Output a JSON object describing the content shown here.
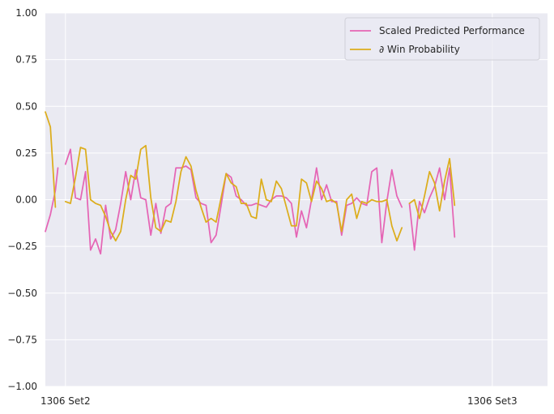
{
  "chart_data": {
    "type": "line",
    "grid": true,
    "legend_placement": "top-right",
    "ylim": [
      -1.0,
      1.0
    ],
    "yticks": [
      -1.0,
      -0.75,
      -0.5,
      -0.25,
      0.0,
      0.25,
      0.5,
      0.75,
      1.0
    ],
    "ytick_labels": [
      "−1.00",
      "−0.75",
      "−0.50",
      "−0.25",
      "0.00",
      "0.25",
      "0.50",
      "0.75",
      "1.00"
    ],
    "xlim": [
      0,
      100
    ],
    "xticks": [
      {
        "x": 4,
        "label": "1306 Set2"
      },
      {
        "x": 89,
        "label": "1306 Set3"
      }
    ],
    "series": [
      {
        "name": "Scaled Predicted Performance",
        "color": "#e565b5",
        "segments": [
          [
            [
              0,
              -0.17
            ],
            [
              1,
              -0.08
            ],
            [
              2,
              0.05
            ],
            [
              2.5,
              0.17
            ]
          ],
          [
            [
              4,
              0.19
            ],
            [
              5,
              0.27
            ],
            [
              6,
              0.01
            ],
            [
              7,
              0.0
            ],
            [
              8,
              0.15
            ],
            [
              9,
              -0.27
            ],
            [
              10,
              -0.21
            ],
            [
              11,
              -0.29
            ],
            [
              12,
              -0.03
            ],
            [
              13,
              -0.21
            ],
            [
              14,
              -0.16
            ],
            [
              15,
              -0.02
            ],
            [
              16,
              0.15
            ],
            [
              17,
              0.0
            ],
            [
              18,
              0.16
            ],
            [
              19,
              0.01
            ],
            [
              20,
              0.0
            ],
            [
              21,
              -0.19
            ],
            [
              22,
              -0.02
            ],
            [
              23,
              -0.18
            ],
            [
              24,
              -0.04
            ],
            [
              25,
              -0.02
            ],
            [
              26,
              0.17
            ],
            [
              27,
              0.17
            ],
            [
              28,
              0.18
            ],
            [
              29,
              0.16
            ],
            [
              30,
              0.01
            ],
            [
              31,
              -0.02
            ],
            [
              32,
              -0.03
            ],
            [
              33,
              -0.23
            ],
            [
              34,
              -0.19
            ],
            [
              35,
              -0.03
            ],
            [
              36,
              0.14
            ],
            [
              37,
              0.12
            ],
            [
              38,
              0.02
            ],
            [
              39,
              0.0
            ],
            [
              40,
              -0.03
            ],
            [
              41,
              -0.03
            ],
            [
              42,
              -0.02
            ],
            [
              43,
              -0.03
            ],
            [
              44,
              -0.04
            ],
            [
              45,
              0.0
            ],
            [
              46,
              0.02
            ],
            [
              47,
              0.02
            ],
            [
              48,
              0.01
            ],
            [
              49,
              -0.02
            ],
            [
              50,
              -0.2
            ],
            [
              51,
              -0.06
            ],
            [
              52,
              -0.15
            ],
            [
              53,
              0.0
            ],
            [
              54,
              0.17
            ],
            [
              55,
              0.0
            ],
            [
              56,
              0.08
            ],
            [
              57,
              -0.01
            ],
            [
              58,
              -0.01
            ],
            [
              59,
              -0.19
            ],
            [
              60,
              -0.03
            ],
            [
              61,
              -0.02
            ],
            [
              62,
              0.01
            ],
            [
              63,
              -0.02
            ],
            [
              64,
              -0.03
            ],
            [
              65,
              0.15
            ],
            [
              66,
              0.17
            ],
            [
              67,
              -0.23
            ],
            [
              68,
              -0.01
            ],
            [
              69,
              0.16
            ],
            [
              70,
              0.02
            ],
            [
              71,
              -0.04
            ]
          ],
          [
            [
              72.5,
              -0.02
            ],
            [
              73.5,
              -0.27
            ],
            [
              74.5,
              -0.01
            ],
            [
              75.5,
              -0.07
            ],
            [
              76.5,
              0.01
            ],
            [
              77.5,
              0.07
            ],
            [
              78.5,
              0.17
            ],
            [
              79.5,
              0.0
            ],
            [
              80.5,
              0.17
            ],
            [
              81.5,
              -0.2
            ]
          ]
        ]
      },
      {
        "name": "∂ Win Probability",
        "color": "#dcad1c",
        "segments": [
          [
            [
              0,
              0.47
            ],
            [
              1,
              0.39
            ],
            [
              2,
              -0.04
            ]
          ],
          [
            [
              4,
              -0.01
            ],
            [
              5,
              -0.02
            ],
            [
              6,
              0.12
            ],
            [
              7,
              0.28
            ],
            [
              8,
              0.27
            ],
            [
              9,
              0.0
            ],
            [
              10,
              -0.02
            ],
            [
              11,
              -0.03
            ],
            [
              12,
              -0.09
            ],
            [
              13,
              -0.17
            ],
            [
              14,
              -0.22
            ],
            [
              15,
              -0.17
            ],
            [
              16,
              0.0
            ],
            [
              17,
              0.13
            ],
            [
              18,
              0.11
            ],
            [
              19,
              0.27
            ],
            [
              20,
              0.29
            ],
            [
              21,
              0.01
            ],
            [
              22,
              -0.15
            ],
            [
              23,
              -0.17
            ],
            [
              24,
              -0.11
            ],
            [
              25,
              -0.12
            ],
            [
              26,
              -0.01
            ],
            [
              27,
              0.15
            ],
            [
              28,
              0.23
            ],
            [
              29,
              0.18
            ],
            [
              30,
              0.05
            ],
            [
              31,
              -0.04
            ],
            [
              32,
              -0.12
            ],
            [
              33,
              -0.1
            ],
            [
              34,
              -0.12
            ],
            [
              35,
              0.01
            ],
            [
              36,
              0.14
            ],
            [
              37,
              0.09
            ],
            [
              38,
              0.07
            ],
            [
              39,
              -0.02
            ],
            [
              40,
              -0.02
            ],
            [
              41,
              -0.09
            ],
            [
              42,
              -0.1
            ],
            [
              43,
              0.11
            ],
            [
              44,
              0.0
            ],
            [
              45,
              -0.01
            ],
            [
              46,
              0.1
            ],
            [
              47,
              0.06
            ],
            [
              48,
              -0.04
            ],
            [
              49,
              -0.14
            ],
            [
              50,
              -0.14
            ],
            [
              51,
              0.11
            ],
            [
              52,
              0.09
            ],
            [
              53,
              -0.01
            ],
            [
              54,
              0.1
            ],
            [
              55,
              0.06
            ],
            [
              56,
              -0.01
            ],
            [
              57,
              0.0
            ],
            [
              58,
              -0.02
            ],
            [
              59,
              -0.17
            ],
            [
              60,
              0.0
            ],
            [
              61,
              0.03
            ],
            [
              62,
              -0.1
            ],
            [
              63,
              -0.01
            ],
            [
              64,
              -0.02
            ],
            [
              65,
              0.0
            ],
            [
              66,
              -0.01
            ],
            [
              67,
              -0.01
            ],
            [
              68,
              0.0
            ],
            [
              69,
              -0.14
            ],
            [
              70,
              -0.22
            ],
            [
              71,
              -0.15
            ]
          ],
          [
            [
              72.5,
              -0.02
            ],
            [
              73.5,
              0.0
            ],
            [
              74.5,
              -0.1
            ],
            [
              75.5,
              0.02
            ],
            [
              76.5,
              0.15
            ],
            [
              77.5,
              0.09
            ],
            [
              78.5,
              -0.06
            ],
            [
              79.5,
              0.1
            ],
            [
              80.5,
              0.22
            ],
            [
              81.5,
              -0.03
            ]
          ]
        ]
      }
    ]
  }
}
